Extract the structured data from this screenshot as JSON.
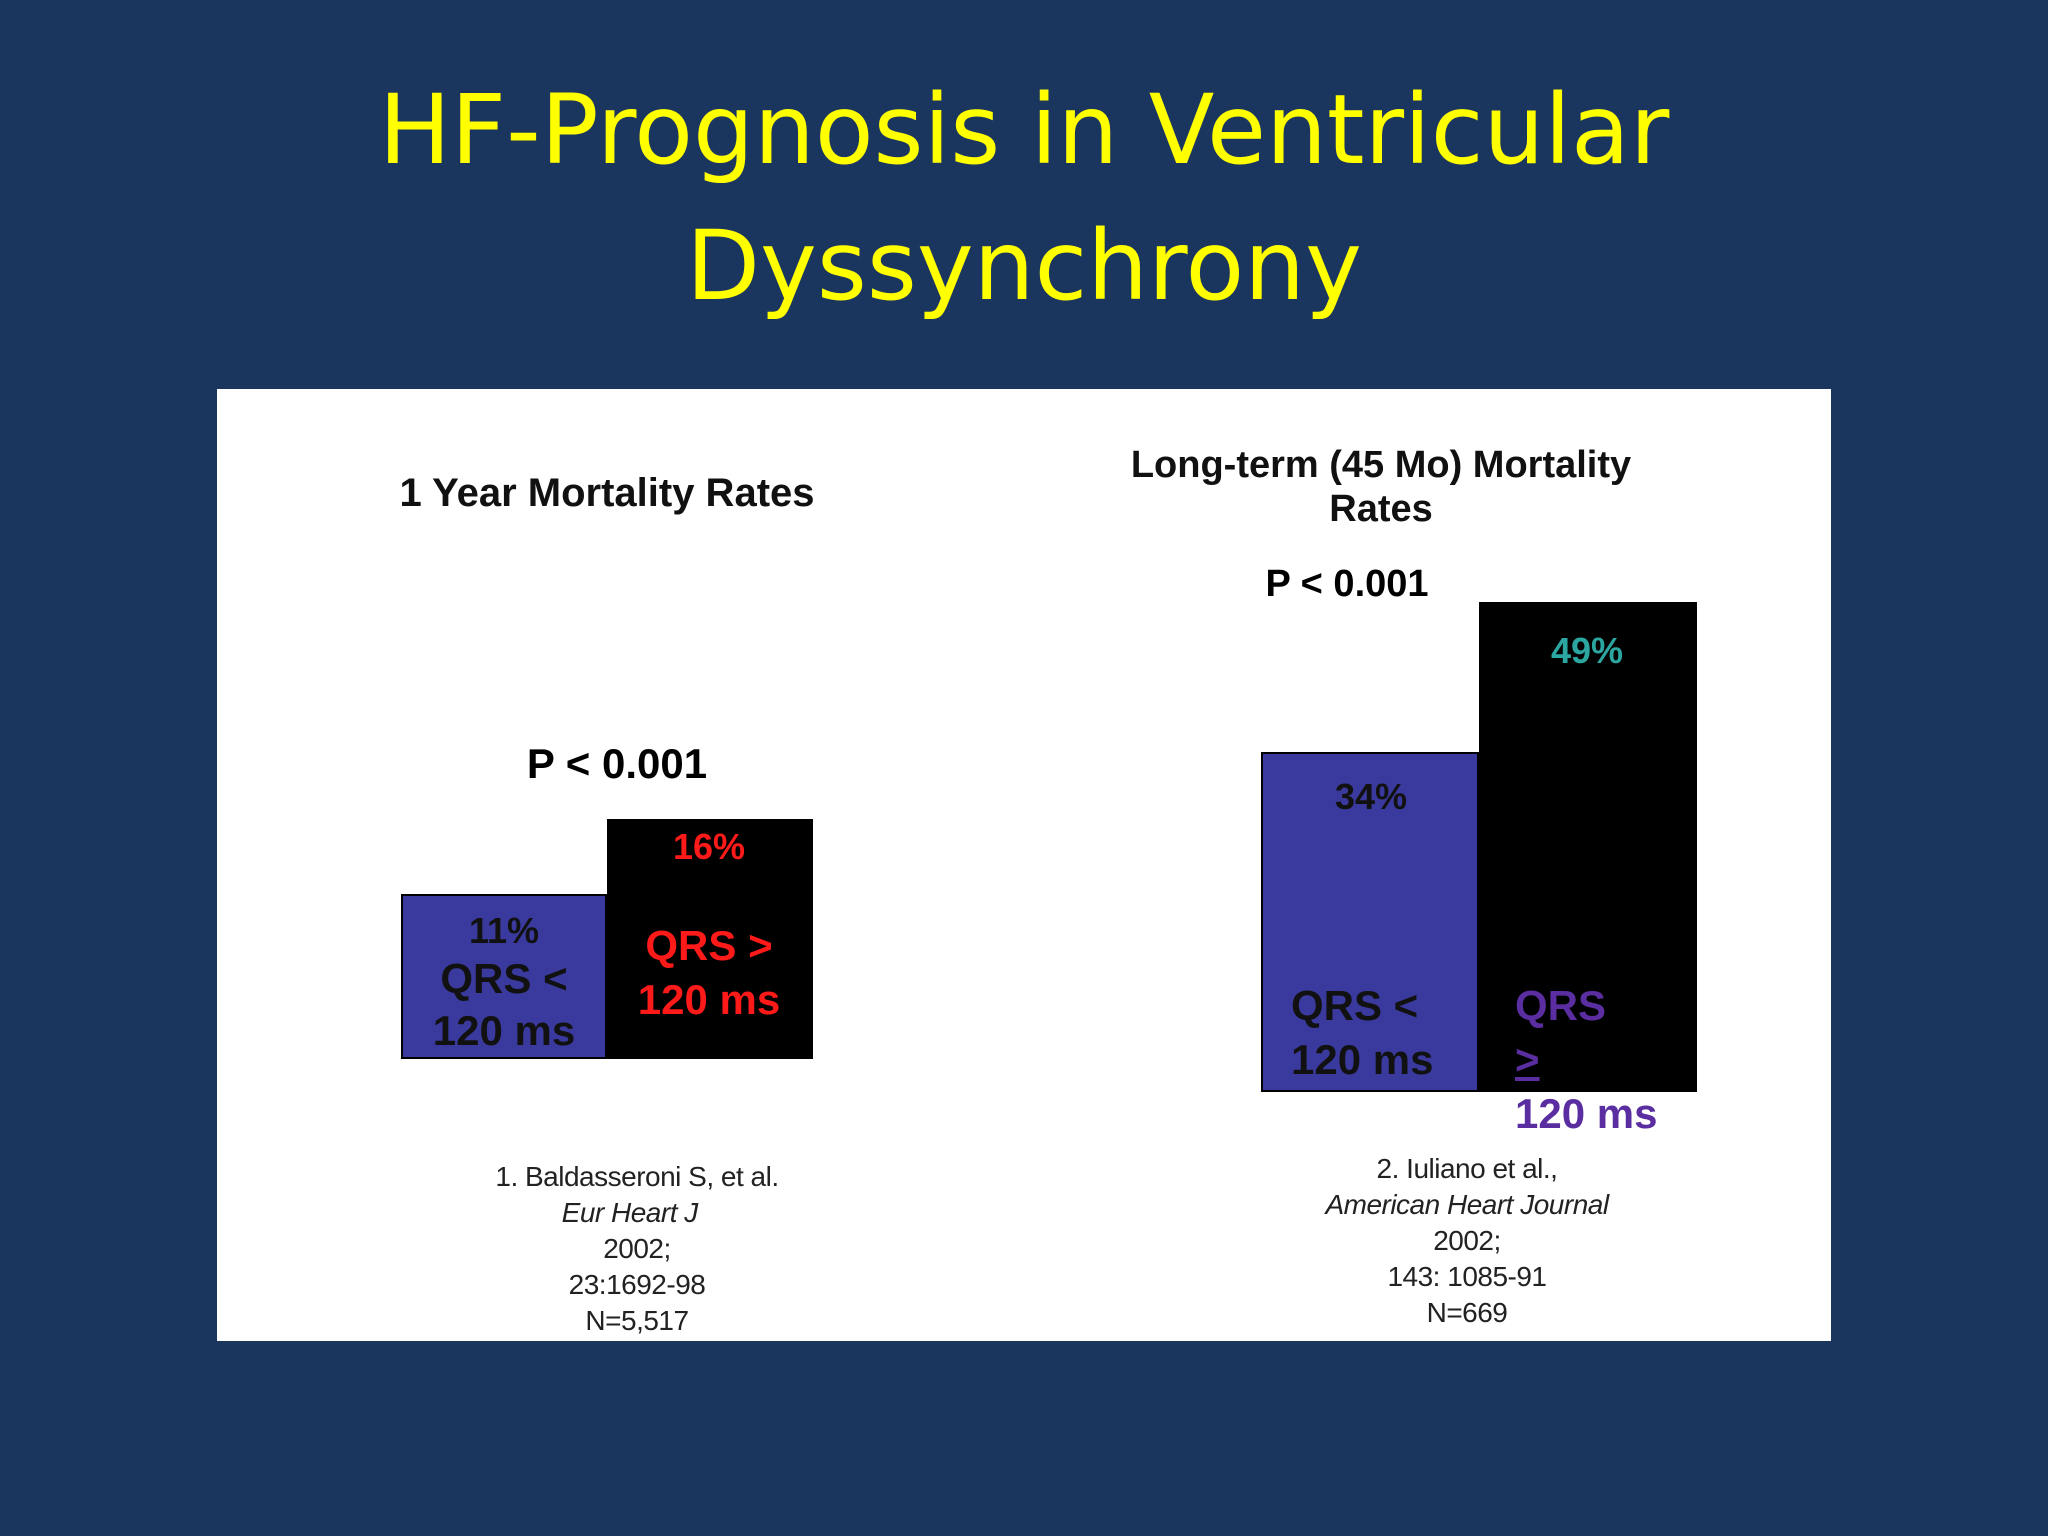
{
  "slide": {
    "title_line1": "HF-Prognosis in Ventricular",
    "title_line2": "Dyssynchrony"
  },
  "colors": {
    "background": "#1b365e",
    "title": "#ffff00",
    "bar_short_qrs": "#3a3a9e",
    "bar_long_qrs": "#000000",
    "label_red": "#ff1a1a",
    "label_teal": "#2ba6a0",
    "label_purple": "#5a2ea0"
  },
  "chart_data": [
    {
      "type": "bar",
      "title": "1 Year Mortality Rates",
      "annotation": "P < 0.001",
      "categories": [
        "QRS < 120 ms",
        "QRS > 120 ms"
      ],
      "values": [
        11,
        16
      ],
      "value_labels": [
        "11%",
        "16%"
      ],
      "category_labels": [
        {
          "line1": "QRS <",
          "line2": "120 ms"
        },
        {
          "line1": "QRS >",
          "line2": "120 ms"
        }
      ],
      "citation": {
        "line1_prefix": "1. Baldasseroni S, et al.",
        "journal": "Eur Heart J",
        "line1_suffix": "2002;",
        "line2": "23:1692-98",
        "line3": "N=5,517"
      }
    },
    {
      "type": "bar",
      "title_line1": "Long-term (45 Mo) Mortality",
      "title_line2": "Rates",
      "annotation": "P < 0.001",
      "categories": [
        "QRS < 120 ms",
        "QRS ≥ 120 ms"
      ],
      "values": [
        34,
        49
      ],
      "value_labels": [
        "34%",
        "49%"
      ],
      "category_labels": [
        {
          "line1": "QRS <",
          "line2": "120 ms"
        },
        {
          "line1_main": "QRS ",
          "line1_symbol": ">",
          "line2": "120 ms"
        }
      ],
      "citation": {
        "line1_prefix": "2. Iuliano et al.,",
        "journal": "American Heart Journal",
        "line1_suffix": "2002;",
        "line2": "143: 1085-91",
        "line3": "N=669"
      }
    }
  ]
}
